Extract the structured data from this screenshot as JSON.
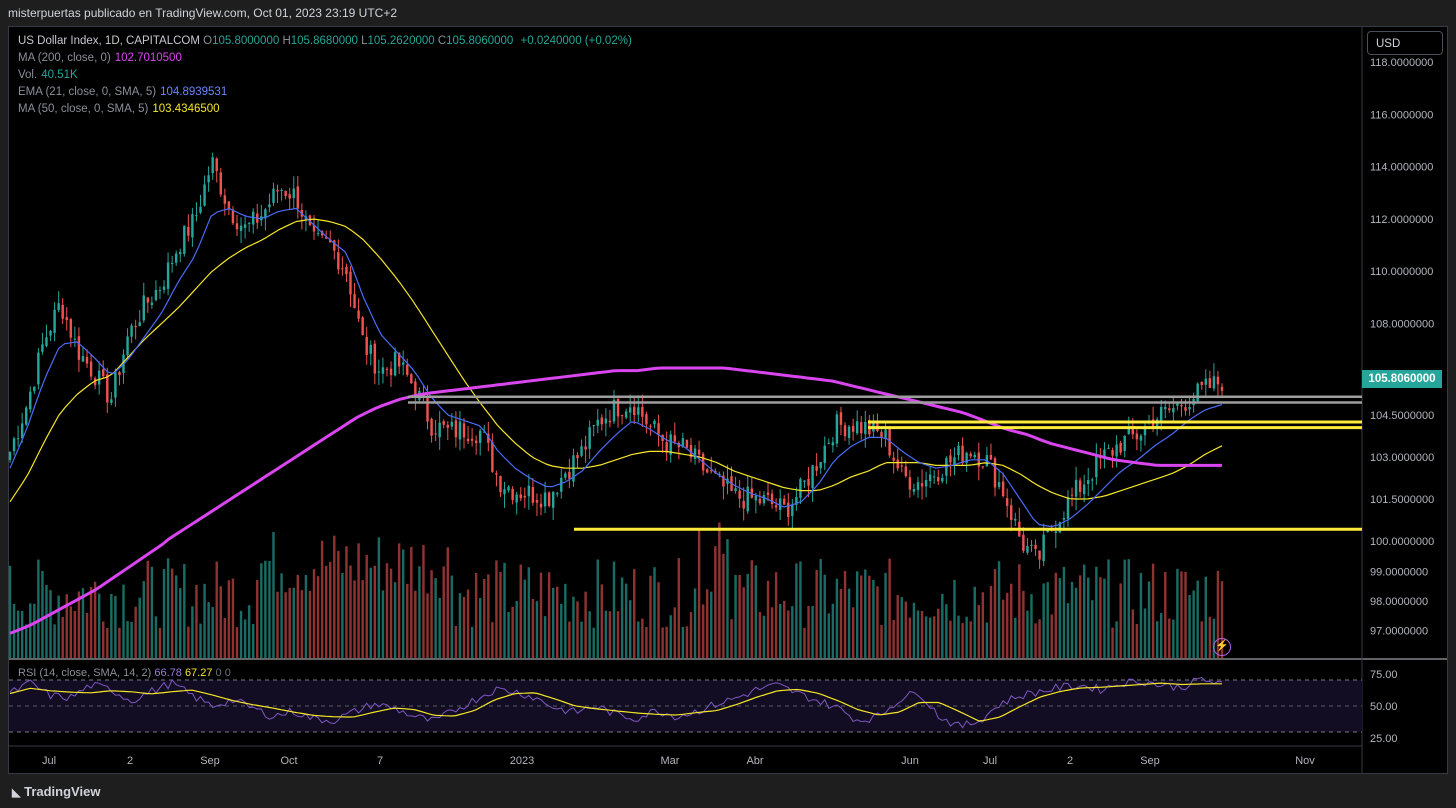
{
  "header": {
    "text": "misterpuertas publicado en TradingView.com, Oct 01, 2023 23:19 UTC+2"
  },
  "legend": {
    "symbol": "US Dollar Index, 1D, CAPITALCOM",
    "ohlc": [
      {
        "k": "O",
        "v": "105.8000000"
      },
      {
        "k": "H",
        "v": "105.8680000"
      },
      {
        "k": "L",
        "v": "105.2620000"
      },
      {
        "k": "C",
        "v": "105.8060000"
      }
    ],
    "change": "+0.0240000 (+0.02%)",
    "indicators": [
      {
        "label": "MA (200, close, 0)",
        "value": "102.7010500",
        "color": "#d946ef"
      },
      {
        "label": "Vol.",
        "value": "40.51K",
        "color": "#26a69a"
      },
      {
        "label": "EMA (21, close, 0, SMA, 5)",
        "value": "104.8939531",
        "color": "#5b7cff"
      },
      {
        "label": "MA (50, close, 0, SMA, 5)",
        "value": "103.4346500",
        "color": "#f5e52a"
      }
    ]
  },
  "currency_button": "USD",
  "last_price": "105.8060000",
  "rsi": {
    "label": "RSI (14, close, SMA, 14, 2)",
    "value": "66.78",
    "ma_value": "67.27",
    "extra": "0  0"
  },
  "footer": {
    "logo": "TradingView"
  },
  "colors": {
    "up": "#26a69a",
    "down": "#ef5350",
    "ma200": "#d946ef",
    "ema21": "#4a6cf7",
    "ma50": "#f5e52a",
    "level": "#ffeb3b",
    "resistance": "#9e9e9e",
    "rsi": "#7e57c2"
  },
  "chart_data": {
    "type": "candlestick",
    "price_axis_ticks": [
      "118.0000000",
      "116.0000000",
      "114.0000000",
      "112.0000000",
      "110.0000000",
      "108.0000000",
      "104.5000000",
      "103.0000000",
      "101.5000000",
      "100.0000000",
      "99.0000000",
      "98.0000000",
      "97.0000000"
    ],
    "time_axis_ticks": [
      "Jul",
      "2",
      "Sep",
      "Oct",
      "7",
      "2023",
      "Mar",
      "Abr",
      "Jun",
      "Jul",
      "2",
      "Sep",
      "Nov"
    ],
    "rsi_axis_ticks": [
      "75.00",
      "50.00",
      "25.00"
    ],
    "close_path": [
      103.2,
      104.9,
      107.3,
      108.8,
      107.0,
      106.1,
      105.1,
      107.5,
      108.7,
      109.5,
      111.0,
      112.0,
      114.2,
      112.4,
      111.6,
      112.2,
      113.2,
      112.9,
      111.1,
      111.0,
      110.0,
      107.2,
      106.2,
      106.5,
      105.6,
      104.2,
      103.9,
      104.0,
      103.9,
      102.2,
      101.8,
      101.7,
      101.6,
      102.5,
      103.2,
      104.3,
      104.8,
      105.0,
      104.1,
      103.5,
      103.3,
      102.7,
      102.1,
      101.6,
      101.5,
      101.4,
      101.1,
      101.8,
      102.9,
      104.1,
      104.2,
      104.0,
      103.7,
      102.3,
      102.1,
      102.5,
      102.9,
      103.3,
      102.9,
      101.8,
      100.1,
      99.3,
      100.6,
      101.5,
      102.3,
      103.0,
      103.5,
      103.8,
      104.4,
      104.7,
      105.1,
      105.5,
      105.8
    ],
    "ema21": [
      102.6,
      104.0,
      105.8,
      107.2,
      107.3,
      106.7,
      106.0,
      106.6,
      107.5,
      108.4,
      109.6,
      110.6,
      112.2,
      112.4,
      112.1,
      112.0,
      112.3,
      112.4,
      111.8,
      111.2,
      110.7,
      109.0,
      107.6,
      106.9,
      106.2,
      105.2,
      104.5,
      104.3,
      104.1,
      103.2,
      102.6,
      102.2,
      101.9,
      102.1,
      102.5,
      103.2,
      103.8,
      104.3,
      104.0,
      103.6,
      103.4,
      102.9,
      102.4,
      102.0,
      101.7,
      101.5,
      101.2,
      101.4,
      102.0,
      102.9,
      103.4,
      103.7,
      103.7,
      103.2,
      102.8,
      102.6,
      102.7,
      102.9,
      102.9,
      102.4,
      101.5,
      100.6,
      100.5,
      100.8,
      101.3,
      101.9,
      102.5,
      102.9,
      103.4,
      103.8,
      104.3,
      104.7,
      104.9
    ],
    "ma50": [
      101.4,
      102.3,
      103.5,
      104.6,
      105.3,
      105.8,
      106.0,
      106.7,
      107.4,
      108.0,
      108.6,
      109.3,
      110.0,
      110.5,
      110.9,
      111.2,
      111.6,
      111.9,
      112.0,
      111.9,
      111.7,
      111.2,
      110.5,
      109.7,
      108.8,
      107.8,
      106.8,
      105.8,
      104.9,
      104.1,
      103.5,
      103.0,
      102.7,
      102.6,
      102.6,
      102.7,
      102.9,
      103.1,
      103.2,
      103.2,
      103.1,
      103.0,
      102.8,
      102.5,
      102.3,
      102.1,
      101.9,
      101.8,
      101.8,
      102.0,
      102.3,
      102.5,
      102.8,
      102.8,
      102.8,
      102.7,
      102.7,
      102.7,
      102.8,
      102.7,
      102.4,
      102.0,
      101.7,
      101.5,
      101.5,
      101.6,
      101.8,
      102.0,
      102.2,
      102.4,
      102.7,
      103.1,
      103.4
    ],
    "ma200": [
      96.9,
      97.2,
      97.6,
      98.0,
      98.4,
      98.9,
      99.4,
      99.9,
      100.4,
      100.9,
      101.4,
      101.9,
      102.4,
      102.9,
      103.4,
      103.9,
      104.4,
      104.8,
      105.1,
      105.3,
      105.4,
      105.5,
      105.6,
      105.7,
      105.8,
      105.9,
      106.0,
      106.1,
      106.2,
      106.2,
      106.3,
      106.3,
      106.3,
      106.3,
      106.2,
      106.1,
      106.0,
      105.9,
      105.8,
      105.6,
      105.4,
      105.2,
      105.0,
      104.8,
      104.6,
      104.3,
      104.0,
      103.8,
      103.5,
      103.3,
      103.1,
      102.9,
      102.8,
      102.7,
      102.7,
      102.7,
      102.7
    ],
    "levels": [
      {
        "label": "resistance-gray",
        "y": [
          105.2,
          104.98
        ]
      },
      {
        "label": "yellow-zone",
        "y": [
          104.25,
          104.05
        ]
      },
      {
        "label": "yellow-support",
        "y": [
          100.42
        ]
      }
    ]
  }
}
